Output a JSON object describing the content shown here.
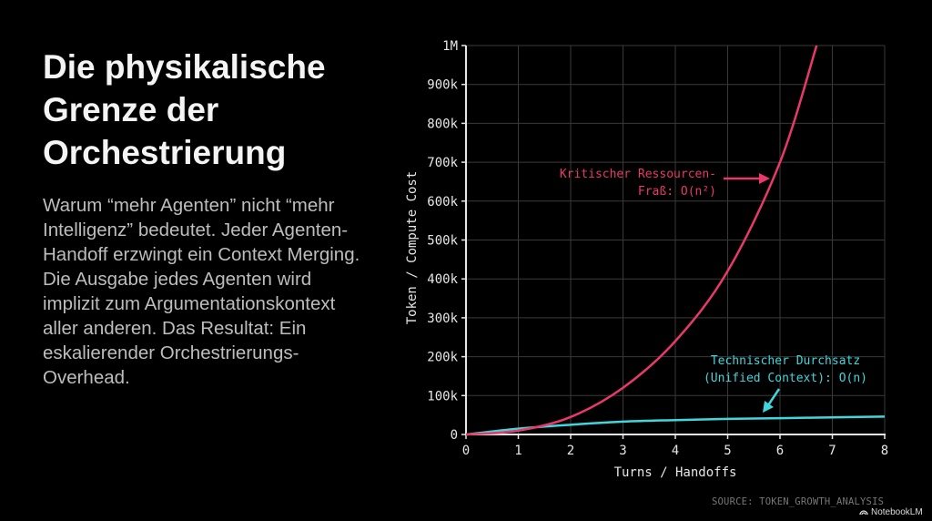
{
  "slide": {
    "title": "Die physikalische Grenze der Orchestrierung",
    "body": "Warum “mehr Agenten” nicht “mehr Intelligenz” bedeutet. Jeder Agenten-Handoff erzwingt ein Context Merging. Die Ausgabe jedes Agenten wird implizit zum Argumentationskontext aller anderen. Das Resultat: Ein eskalierender Orchestrierungs-Overhead.",
    "source": "SOURCE: TOKEN_GROWTH_ANALYSIS",
    "brand": "NotebookLM"
  },
  "colors": {
    "background": "#000000",
    "red_series": "#e8396a",
    "cyan_series": "#3fd6dc",
    "grid": "#3a3a3a",
    "axis": "#e6e6e6"
  },
  "chart_data": {
    "type": "line",
    "title": "",
    "xlabel": "Turns / Handoffs",
    "ylabel": "Token / Compute Cost",
    "xlim": [
      0,
      8
    ],
    "ylim": [
      0,
      1000000
    ],
    "x_ticks": [
      "0",
      "1",
      "2",
      "3",
      "4",
      "5",
      "6",
      "7",
      "8"
    ],
    "y_ticks": [
      "0",
      "100k",
      "200k",
      "300k",
      "400k",
      "500k",
      "600k",
      "700k",
      "800k",
      "900k",
      "1M"
    ],
    "grid": true,
    "series": [
      {
        "name": "Kritischer Ressourcen-Fraß: O(n²)",
        "color": "#e8396a",
        "x": [
          0,
          1,
          2,
          3,
          4,
          5,
          6,
          6.7
        ],
        "values": [
          0,
          10000,
          45000,
          120000,
          240000,
          420000,
          700000,
          1000000
        ]
      },
      {
        "name": "Technischer Durchsatz (Unified Context): O(n)",
        "color": "#3fd6dc",
        "x": [
          0,
          1,
          2,
          3,
          4,
          5,
          6,
          7,
          8
        ],
        "values": [
          0,
          15000,
          25000,
          33000,
          37000,
          40000,
          42000,
          44000,
          46000
        ]
      }
    ],
    "annotations": [
      {
        "lines": [
          "Kritischer Ressourcen-",
          "Fraß: O(n²)"
        ],
        "color": "#e8396a",
        "arrow_to": [
          5.8,
          650000
        ]
      },
      {
        "lines": [
          "Technischer Durchsatz",
          "(Unified Context): O(n)"
        ],
        "color": "#3fd6dc",
        "arrow_to": [
          5.6,
          42000
        ]
      }
    ]
  }
}
